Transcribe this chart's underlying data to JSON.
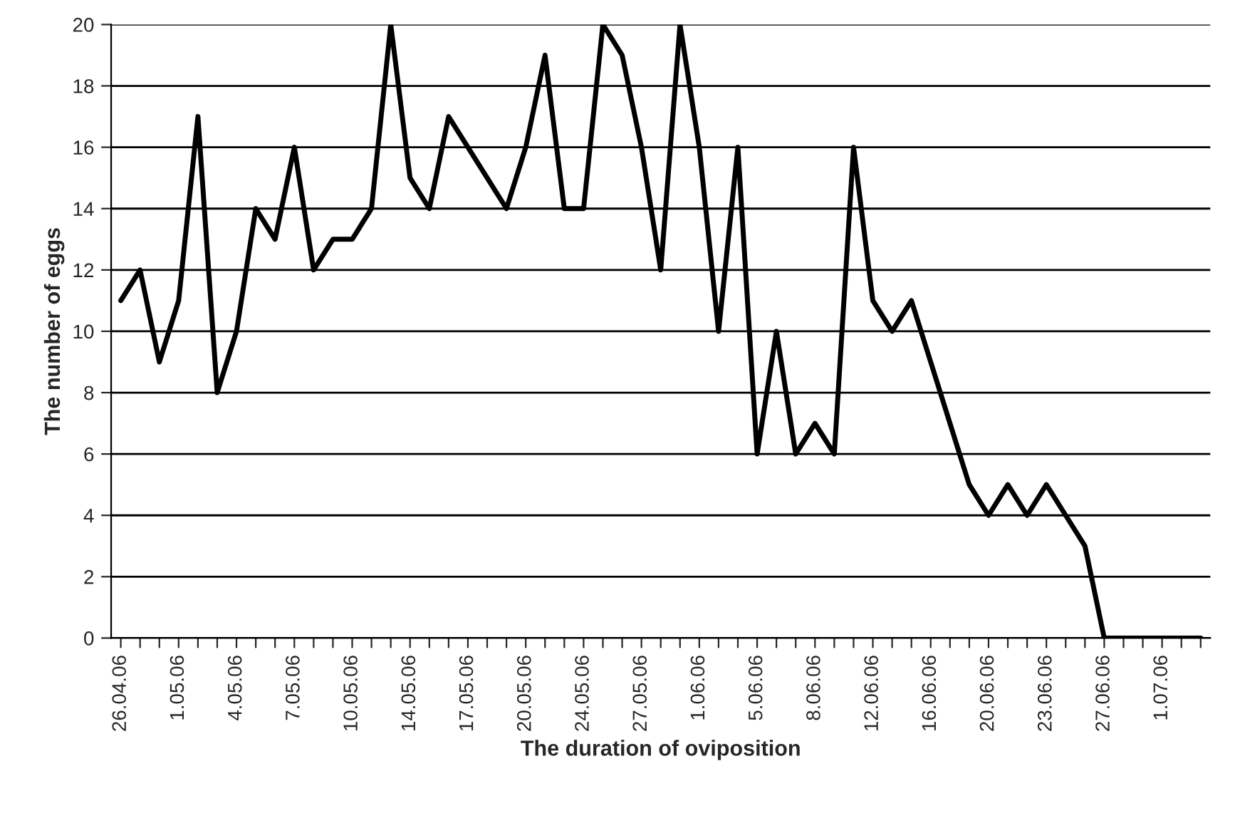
{
  "chart_data": {
    "type": "line",
    "xlabel": "The duration of oviposition",
    "ylabel": "The number of eggs",
    "categories": [
      "26.04.06",
      null,
      null,
      "1.05.06",
      null,
      null,
      "4.05.06",
      null,
      null,
      "7.05.06",
      null,
      null,
      "10.05.06",
      null,
      null,
      "14.05.06",
      null,
      null,
      "17.05.06",
      null,
      null,
      "20.05.06",
      null,
      null,
      "24.05.06",
      null,
      null,
      "27.05.06",
      null,
      null,
      "1.06.06",
      null,
      null,
      "5.06.06",
      null,
      null,
      "8.06.06",
      null,
      null,
      "12.06.06",
      null,
      null,
      "16.06.06",
      null,
      null,
      "20.06.06",
      null,
      null,
      "23.06.06",
      null,
      null,
      "27.06.06",
      null,
      null,
      "1.07.06",
      null,
      null
    ],
    "series": [
      {
        "color": "#000000",
        "values": [
          11,
          12,
          9,
          11,
          17,
          8,
          10,
          14,
          13,
          16,
          12,
          13,
          13,
          14,
          20,
          15,
          14,
          17,
          16,
          15,
          14,
          16,
          19,
          14,
          14,
          20,
          19,
          16,
          12,
          20,
          16,
          10,
          16,
          6,
          10,
          6,
          7,
          6,
          16,
          11,
          10,
          11,
          9,
          7,
          5,
          4,
          5,
          4,
          5,
          4,
          3,
          0,
          0,
          0,
          0,
          0,
          0
        ]
      }
    ],
    "ylim": [
      0,
      20
    ],
    "yticks": [
      0,
      2,
      4,
      6,
      8,
      10,
      12,
      14,
      16,
      18,
      20
    ],
    "grid": "y",
    "marker": "none",
    "line_style": "solid"
  }
}
